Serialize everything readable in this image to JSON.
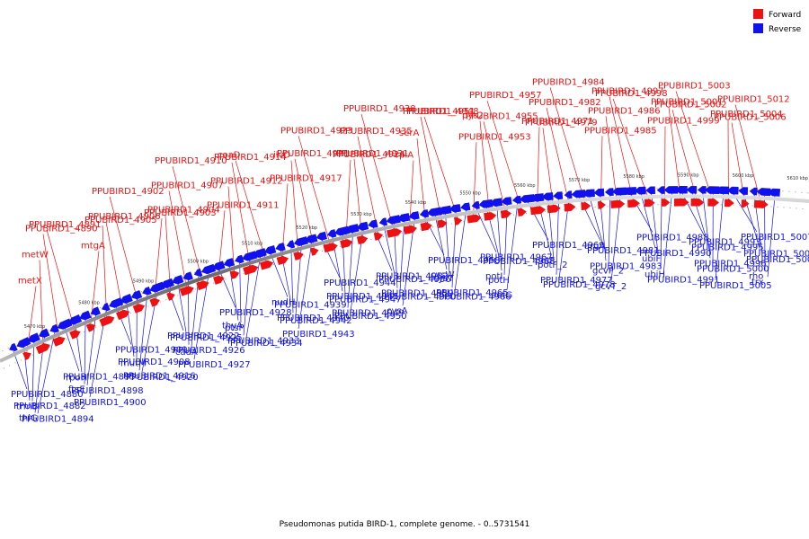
{
  "caption": "Pseudomonas putida BIRD-1, complete genome. - 0..5731541",
  "legend": [
    {
      "label": "Forward",
      "color": "#ee1111"
    },
    {
      "label": "Reverse",
      "color": "#1111ee"
    }
  ],
  "colors": {
    "forward": "#ee1111",
    "reverse": "#1111ee",
    "backbone": "#888888"
  },
  "ticks": [
    "5470 kbp",
    "5480 kbp",
    "5490 kbp",
    "5500 kbp",
    "5510 kbp",
    "5520 kbp",
    "5530 kbp",
    "5540 kbp",
    "5550 kbp",
    "5560 kbp",
    "5570 kbp",
    "5580 kbp",
    "5590 kbp",
    "5600 kbp",
    "5610 kbp"
  ],
  "forward_genes": [
    "metX",
    "metW",
    "PPUBIRD1_4890",
    "PPUBIRD1_4891",
    "mtgA",
    "PPUBIRD1_4905",
    "PPUBIRD1_4906",
    "PPUBIRD1_4902",
    "PPUBIRD1_4903",
    "PPUBIRD1_4904",
    "PPUBIRD1_4907",
    "PPUBIRD1_4910",
    "PPUBIRD1_4911",
    "PPUBIRD1_4912",
    "PPUBIRD1_4914",
    "coaD",
    "PPUBIRD1_4917",
    "ilvD",
    "PPUBIRD1_4921",
    "PPUBIRD1_4923",
    "PPUBIRD1_4924",
    "PPUBIRD1_4931",
    "PPUBIRD1_4935",
    "PPUBIRD1_4938",
    "rpiA",
    "serA",
    "PPUBIRD1_4951",
    "PPUBIRD1_4948",
    "PPUBIRD1_4953",
    "pys2",
    "PPUBIRD1_4955",
    "PPUBIRD1_4957",
    "PPUBIRD1_4971",
    "PPUBIRD1_4979",
    "PPUBIRD1_4982",
    "PPUBIRD1_4984",
    "PPUBIRD1_4985",
    "PPUBIRD1_4986",
    "PPUBIRD1_4997",
    "PPUBIRD1_4998",
    "PPUBIRD1_4999",
    "PPUBIRD1_5001",
    "PPUBIRD1_5002",
    "PPUBIRD1_5003",
    "PPUBIRD1_5004",
    "PPUBIRD1_5006",
    "PPUBIRD1_5012"
  ],
  "reverse_genes": [
    "PPUBIRD1_4880",
    "PPUBIRD1_4882",
    "trmB",
    "thiG",
    "PPUBIRD1_4894",
    "PPUBIRD1_4895",
    "rpoH",
    "ftsE",
    "PPUBIRD1_4898",
    "PPUBIRD1_4900",
    "PPUBIRD1_4909",
    "PPUBIRD1_4908",
    "mutM",
    "PPUBIRD1_4916",
    "PPUBIRD1_4920",
    "PPUBIRD1_4922",
    "PPUBIRD1_4925",
    "PPUBIRD1_4926",
    "cadA",
    "PPUBIRD1_4927",
    "PPUBIRD1_4928",
    "thyA",
    "ptsP",
    "PPUBIRD1_4933",
    "PPUBIRD1_4934",
    "nudH",
    "PPUBIRD1_4939",
    "PPUBIRD1_4940",
    "PPUBIRD1_4942",
    "PPUBIRD1_4943",
    "PPUBIRD1_4944",
    "PPUBIRD1_4945",
    "PPUBIRD1_4947",
    "PPUBIRD1_4949",
    "PPUBIRD1_4950",
    "PPUBIRD1_4952",
    "PPUBIRD1_4956",
    "PPUBIRD1_4959",
    "PPUBIRD1_4960",
    "cysA",
    "PPUBIRD1_4958",
    "cysW",
    "cysT",
    "PPUBIRD1_4965",
    "PPUBIRD1_4966",
    "PPUBIRD1_4967",
    "PPUBIRD1_4968",
    "potI",
    "potH",
    "potG",
    "PPUBIRD1_4969",
    "potF",
    "potF_2",
    "PPUBIRD1_4977",
    "PPUBIRD1_4978",
    "argA",
    "PPUBIRD1_4981",
    "PPUBIRD1_4983",
    "gcvP_2",
    "gcvT_2",
    "PPUBIRD1_4988",
    "PPUBIRD1_4990",
    "ubiF",
    "ubiH",
    "PPUBIRD1_4991",
    "PPUBIRD1_4993",
    "PPUBIRD1_4995",
    "PPUBIRD1_4996",
    "PPUBIRD1_5000",
    "PPUBIRD1_5005",
    "PPUBIRD1_5007",
    "PPUBIRD1_5008",
    "PPUBIRD1_5009",
    "rho",
    "trx"
  ]
}
